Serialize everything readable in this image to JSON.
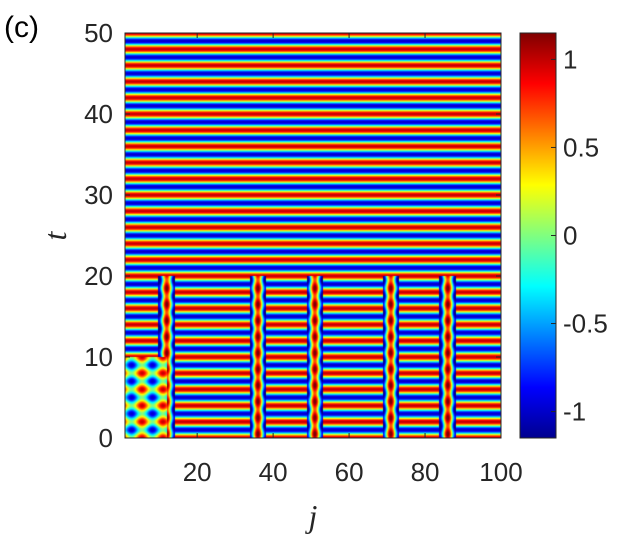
{
  "panel_label": "(c)",
  "chart_data": {
    "type": "heatmap",
    "title": "",
    "xlabel": "j",
    "ylabel": "t",
    "xlim": [
      1,
      100
    ],
    "ylim": [
      0,
      50
    ],
    "x_ticks": [
      20,
      40,
      60,
      80,
      100
    ],
    "y_ticks": [
      0,
      10,
      20,
      30,
      40,
      50
    ],
    "colorbar": {
      "colormap": "jet",
      "limits": [
        -1.15,
        1.15
      ],
      "ticks": [
        -1,
        -0.5,
        0,
        0.5,
        1
      ],
      "tick_labels": [
        "-1",
        "-0.5",
        "0",
        "0.5",
        "1"
      ]
    },
    "description_values": {
      "synchronized_after_t": 20,
      "oscillation_period_t": 2.0,
      "domain_walls_j": [
        12,
        36,
        51,
        71,
        86
      ],
      "early_cluster_j_range": [
        1,
        12
      ],
      "early_cluster_t_end": 10
    },
    "colors": {
      "jet_dark_blue": "#00008F",
      "jet_blue": "#0000FF",
      "jet_cyan": "#00FFFF",
      "jet_yellow": "#FFFF00",
      "jet_red": "#FF0000",
      "jet_dark_red": "#800000"
    }
  }
}
